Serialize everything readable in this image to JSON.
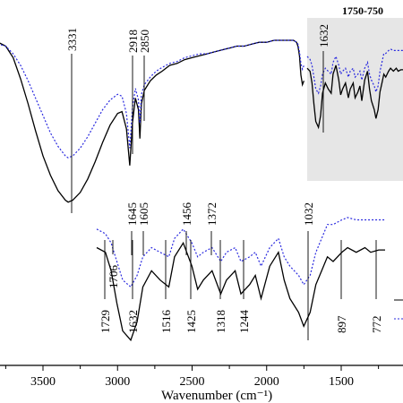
{
  "chart_data": {
    "type": "line",
    "xlabel": "Wavenumber (cm⁻¹)",
    "ylabel": "",
    "x_reversed": true,
    "xlim": [
      3900,
      1090
    ],
    "ylim": [
      0,
      100
    ],
    "xticks": [
      {
        "value": 3500,
        "label": "3500"
      },
      {
        "value": 3000,
        "label": "3000"
      },
      {
        "value": 2500,
        "label": "2500"
      },
      {
        "value": 2000,
        "label": "2000"
      },
      {
        "value": 1500,
        "label": "1500"
      }
    ],
    "inset_title": "1750-750",
    "panels": [
      {
        "name": "full spectrum",
        "x_axis": "wavenumber",
        "series": [
          {
            "style": "solid",
            "color": "#000000",
            "x": [
              3900,
              3850,
              3800,
              3750,
              3700,
              3650,
              3600,
              3550,
              3500,
              3450,
              3400,
              3350,
              3331,
              3300,
              3250,
              3200,
              3150,
              3100,
              3050,
              3000,
              2970,
              2940,
              2918,
              2900,
              2880,
              2860,
              2850,
              2840,
              2820,
              2780,
              2740,
              2700,
              2650,
              2600,
              2550,
              2500,
              2450,
              2400,
              2350,
              2300,
              2250,
              2200,
              2150,
              2100,
              2050,
              2000,
              1950,
              1900,
              1880,
              1850,
              1820,
              1800,
              1790,
              1780,
              1770,
              1760,
              1750
            ],
            "y": [
              93,
              93,
              92,
              90,
              84,
              73,
              60,
              46,
              33,
              23,
              15,
              10,
              9,
              10,
              14,
              21,
              30,
              40,
              49,
              55,
              56,
              47,
              28,
              50,
              63,
              57,
              42,
              60,
              67,
              72,
              75,
              77,
              80,
              81,
              83,
              84,
              85,
              86,
              87,
              88,
              89,
              90,
              90,
              91,
              92,
              92,
              93,
              93,
              93,
              93,
              93,
              92,
              90,
              85,
              75,
              70,
              72
            ]
          },
          {
            "style": "dotted",
            "color": "#2a2adf",
            "x": [
              3900,
              3850,
              3800,
              3750,
              3700,
              3650,
              3600,
              3550,
              3500,
              3450,
              3400,
              3350,
              3331,
              3300,
              3250,
              3200,
              3150,
              3100,
              3050,
              3000,
              2970,
              2940,
              2918,
              2900,
              2880,
              2860,
              2850,
              2840,
              2820,
              2780,
              2740,
              2700,
              2650,
              2600,
              2550,
              2500,
              2450,
              2400,
              2350,
              2300,
              2250,
              2200,
              2150,
              2100,
              2050,
              2000,
              1950,
              1900,
              1880,
              1850,
              1820,
              1800,
              1790,
              1780,
              1770,
              1760,
              1750
            ],
            "y": [
              92,
              92,
              91,
              90,
              86,
              80,
              72,
              63,
              54,
              45,
              38,
              33,
              32,
              33,
              37,
              43,
              50,
              57,
              62,
              65,
              64,
              55,
              37,
              58,
              68,
              62,
              50,
              65,
              70,
              74,
              77,
              79,
              81,
              82,
              84,
              85,
              86,
              86,
              87,
              88,
              89,
              90,
              90,
              91,
              92,
              92,
              93,
              93,
              93,
              93,
              93,
              92,
              91,
              87,
              81,
              78,
              80
            ]
          }
        ]
      },
      {
        "name": "inset 1750-750",
        "x_axis": "wavenumber",
        "x_range": [
          1750,
          750
        ],
        "series": [
          {
            "style": "solid",
            "color": "#000000",
            "x": [
              1750,
              1720,
              1700,
              1680,
              1660,
              1632,
              1610,
              1590,
              1560,
              1530,
              1500,
              1480,
              1450,
              1420,
              1400,
              1380,
              1350,
              1320,
              1300,
              1270,
              1250,
              1220,
              1200,
              1180,
              1150,
              1120,
              1100,
              1080,
              1050,
              1032,
              1010,
              990,
              970,
              950,
              930,
              900,
              880,
              850,
              820,
              800,
              772,
              760,
              750
            ],
            "y": [
              72,
              70,
              62,
              48,
              36,
              32,
              40,
              55,
              62,
              58,
              55,
              68,
              74,
              64,
              54,
              58,
              62,
              52,
              58,
              62,
              52,
              56,
              60,
              50,
              64,
              70,
              58,
              50,
              44,
              38,
              44,
              56,
              62,
              68,
              66,
              70,
              72,
              70,
              72,
              70,
              71,
              71,
              71
            ]
          },
          {
            "style": "dotted",
            "color": "#2a2adf",
            "x": [
              1750,
              1720,
              1700,
              1680,
              1660,
              1632,
              1610,
              1590,
              1560,
              1530,
              1500,
              1480,
              1450,
              1420,
              1400,
              1380,
              1350,
              1320,
              1300,
              1270,
              1250,
              1220,
              1200,
              1180,
              1150,
              1120,
              1100,
              1080,
              1050,
              1032,
              1010,
              990,
              970,
              950,
              930,
              900,
              880,
              850,
              820,
              800,
              772,
              760,
              750
            ],
            "y": [
              80,
              78,
              74,
              66,
              58,
              55,
              60,
              68,
              72,
              70,
              68,
              76,
              80,
              74,
              68,
              70,
              72,
              66,
              70,
              72,
              66,
              68,
              70,
              64,
              72,
              76,
              68,
              64,
              60,
              56,
              60,
              70,
              76,
              82,
              82,
              84,
              85,
              84,
              84,
              84,
              84,
              84,
              84
            ]
          }
        ]
      }
    ],
    "annotations_upper": [
      {
        "x": 3331,
        "label": "3331"
      },
      {
        "x": 2918,
        "label": "2918"
      },
      {
        "x": 2850,
        "label": "2850"
      }
    ],
    "annotations_inset": [
      {
        "x": 1632,
        "label": "1632"
      }
    ],
    "annotations_lower_top": [
      {
        "label": "1645"
      },
      {
        "label": "1605"
      },
      {
        "label": "1456"
      },
      {
        "label": "1372"
      },
      {
        "label": "1032"
      }
    ],
    "annotations_lower_bottom": [
      {
        "label": "1729"
      },
      {
        "label": "1706"
      },
      {
        "label": "1632"
      },
      {
        "label": "1516"
      },
      {
        "label": "1425"
      },
      {
        "label": "1318"
      },
      {
        "label": "1244"
      },
      {
        "label": "897"
      },
      {
        "label": "772"
      }
    ]
  }
}
